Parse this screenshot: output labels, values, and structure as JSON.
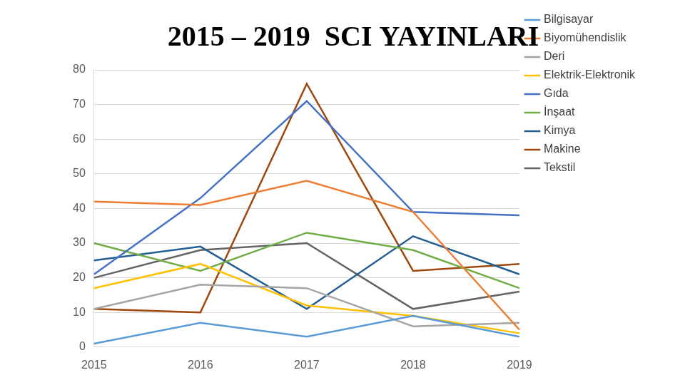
{
  "chart_data": {
    "type": "line",
    "title": "2015 – 2019  SCI YAYINLARI",
    "categories": [
      "2015",
      "2016",
      "2017",
      "2018",
      "2019"
    ],
    "series": [
      {
        "name": "Bilgisayar",
        "color": "#5b9bd5",
        "values": [
          1,
          7,
          3,
          9,
          3
        ]
      },
      {
        "name": "Biyomühendislik",
        "color": "#ed7d31",
        "values": [
          42,
          41,
          48,
          39,
          5
        ]
      },
      {
        "name": "Deri",
        "color": "#a5a5a5",
        "values": [
          11,
          18,
          17,
          6,
          7
        ]
      },
      {
        "name": "Elektrik-Elektronik",
        "color": "#ffc000",
        "values": [
          17,
          24,
          12,
          9,
          4
        ]
      },
      {
        "name": "Gıda",
        "color": "#4472c4",
        "values": [
          21,
          43,
          71,
          39,
          38
        ]
      },
      {
        "name": "İnşaat",
        "color": "#70ad47",
        "values": [
          30,
          22,
          33,
          28,
          17
        ]
      },
      {
        "name": "Kimya",
        "color": "#255e91",
        "values": [
          25,
          29,
          11,
          32,
          21
        ]
      },
      {
        "name": "Makine",
        "color": "#9e480e",
        "values": [
          11,
          10,
          76,
          22,
          24
        ]
      },
      {
        "name": "Tekstil",
        "color": "#636363",
        "values": [
          20,
          28,
          30,
          11,
          16
        ]
      }
    ],
    "ylim": [
      0,
      80
    ],
    "yticks": [
      0,
      10,
      20,
      30,
      40,
      50,
      60,
      70,
      80
    ],
    "grid": true,
    "legend": "right"
  }
}
